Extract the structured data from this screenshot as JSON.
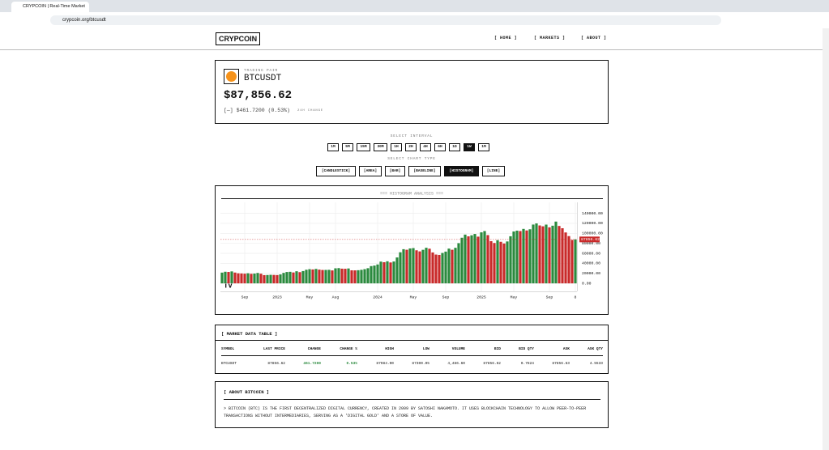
{
  "browser": {
    "tab_title": "CRYPCOIN | Real-Time Market",
    "url": "crypcoin.org/btcusdt"
  },
  "nav": {
    "logo": "CRYPCOIN",
    "links": [
      "[ HOME ]",
      "[ MARKETS ]",
      "[ ABOUT ]"
    ]
  },
  "header": {
    "label": "TRADING PAIR",
    "symbol": "BTCUSDT",
    "price": "$87,856.62",
    "change": "[—] $461.7200 (0.53%)",
    "change_label": "24H CHANGE"
  },
  "controls": {
    "interval_label": "SELECT INTERVAL",
    "intervals": [
      "1M",
      "5M",
      "15M",
      "30M",
      "1H",
      "2H",
      "4H",
      "6H",
      "1D",
      "1W",
      "1M"
    ],
    "active_interval": "1W",
    "chart_type_label": "SELECT CHART TYPE",
    "chart_types": [
      "[CANDLESTICK]",
      "[AREA]",
      "[BAR]",
      "[BASELINE]",
      "[HISTOGRAM]",
      "[LINE]"
    ],
    "active_chart_type": "[HISTOGRAM]"
  },
  "chart_data": {
    "type": "bar",
    "title": "=== HISTOGRAM ANALYSIS ===",
    "categories": [
      null,
      null,
      null,
      null,
      null,
      null,
      null,
      "Sep",
      null,
      null,
      null,
      null,
      null,
      null,
      null,
      null,
      null,
      "2023",
      null,
      null,
      null,
      null,
      null,
      null,
      null,
      null,
      null,
      "May",
      null,
      null,
      null,
      null,
      null,
      null,
      null,
      "Aug",
      null,
      null,
      null,
      null,
      null,
      null,
      null,
      null,
      null,
      null,
      null,
      null,
      "2024",
      null,
      null,
      null,
      null,
      null,
      null,
      null,
      null,
      null,
      null,
      "May",
      null,
      null,
      null,
      null,
      null,
      null,
      null,
      null,
      null,
      "Sep",
      null,
      null,
      null,
      null,
      null,
      null,
      null,
      null,
      null,
      null,
      "2025",
      null,
      null,
      null,
      null,
      null,
      null,
      null,
      null,
      null,
      "May",
      null,
      null,
      null,
      null,
      null,
      null,
      null,
      null,
      null,
      null,
      "Sep",
      null,
      null,
      null,
      null,
      null,
      null,
      null,
      "8"
    ],
    "values": [
      21500,
      23200,
      22800,
      23900,
      21600,
      20100,
      19800,
      19400,
      20200,
      19100,
      19600,
      20800,
      19300,
      16500,
      16700,
      17100,
      16900,
      16600,
      17900,
      20900,
      22700,
      23100,
      21800,
      24200,
      22400,
      24600,
      27200,
      28400,
      27800,
      28900,
      27500,
      26800,
      26900,
      27100,
      25900,
      30100,
      30500,
      29400,
      29200,
      29800,
      26100,
      26000,
      26300,
      27100,
      28400,
      30300,
      34500,
      35600,
      37800,
      43500,
      42300,
      44100,
      41800,
      43700,
      51800,
      62200,
      68300,
      67200,
      69800,
      70500,
      66100,
      63900,
      67100,
      71200,
      69300,
      61800,
      57600,
      56900,
      60800,
      63500,
      69500,
      67200,
      71100,
      80400,
      91200,
      97500,
      94000,
      96100,
      98800,
      93400,
      102000,
      104600,
      96500,
      84400,
      80700,
      86300,
      83100,
      79700,
      83800,
      94200,
      103700,
      105400,
      104600,
      108900,
      105800,
      108200,
      117600,
      119800,
      115800,
      114100,
      117500,
      112000,
      115300,
      123500,
      114800,
      110200,
      101800,
      94500,
      86900,
      87856.62
    ],
    "up_color": "#2b8a3e",
    "down_color": "#c92a2a",
    "ylim": [
      -16000,
      162000
    ],
    "yticks": [
      {
        "value": 0,
        "label": "0.00"
      },
      {
        "value": 20000,
        "label": "20000.00"
      },
      {
        "value": 40000,
        "label": "40000.00"
      },
      {
        "value": 60000,
        "label": "60000.00"
      },
      {
        "value": 80000,
        "label": "80000.00"
      },
      {
        "value": 100000,
        "label": "100000.00"
      },
      {
        "value": 120000,
        "label": "120000.00"
      },
      {
        "value": 140000,
        "label": "140000.00"
      }
    ],
    "grid": true,
    "last_price": 87856.62
  },
  "table": {
    "title": "[ MARKET DATA TABLE ]",
    "columns": [
      "SYMBOL",
      "LAST PRICE",
      "CHANGE",
      "CHANGE %",
      "HIGH",
      "LOW",
      "VOLUME",
      "BID",
      "BID QTY",
      "ASK",
      "ASK QTY"
    ],
    "rows": [
      [
        "BTCUSDT",
        "87856.62",
        "461.7200",
        "0.53%",
        "87984.00",
        "87300.05",
        "4,486.60",
        "87856.62",
        "0.7824",
        "87856.63",
        "4.5533"
      ]
    ]
  },
  "about": {
    "title": "[ ABOUT BITCOIN ]",
    "text": "> BITCOIN (BTC) IS THE FIRST DECENTRALIZED DIGITAL CURRENCY, CREATED IN 2009 BY SATOSHI NAKAMOTO. IT USES BLOCKCHAIN TECHNOLOGY TO ALLOW PEER-TO-PEER TRANSACTIONS WITHOUT INTERMEDIARIES, SERVING AS A 'DIGITAL GOLD' AND A STORE OF VALUE."
  }
}
